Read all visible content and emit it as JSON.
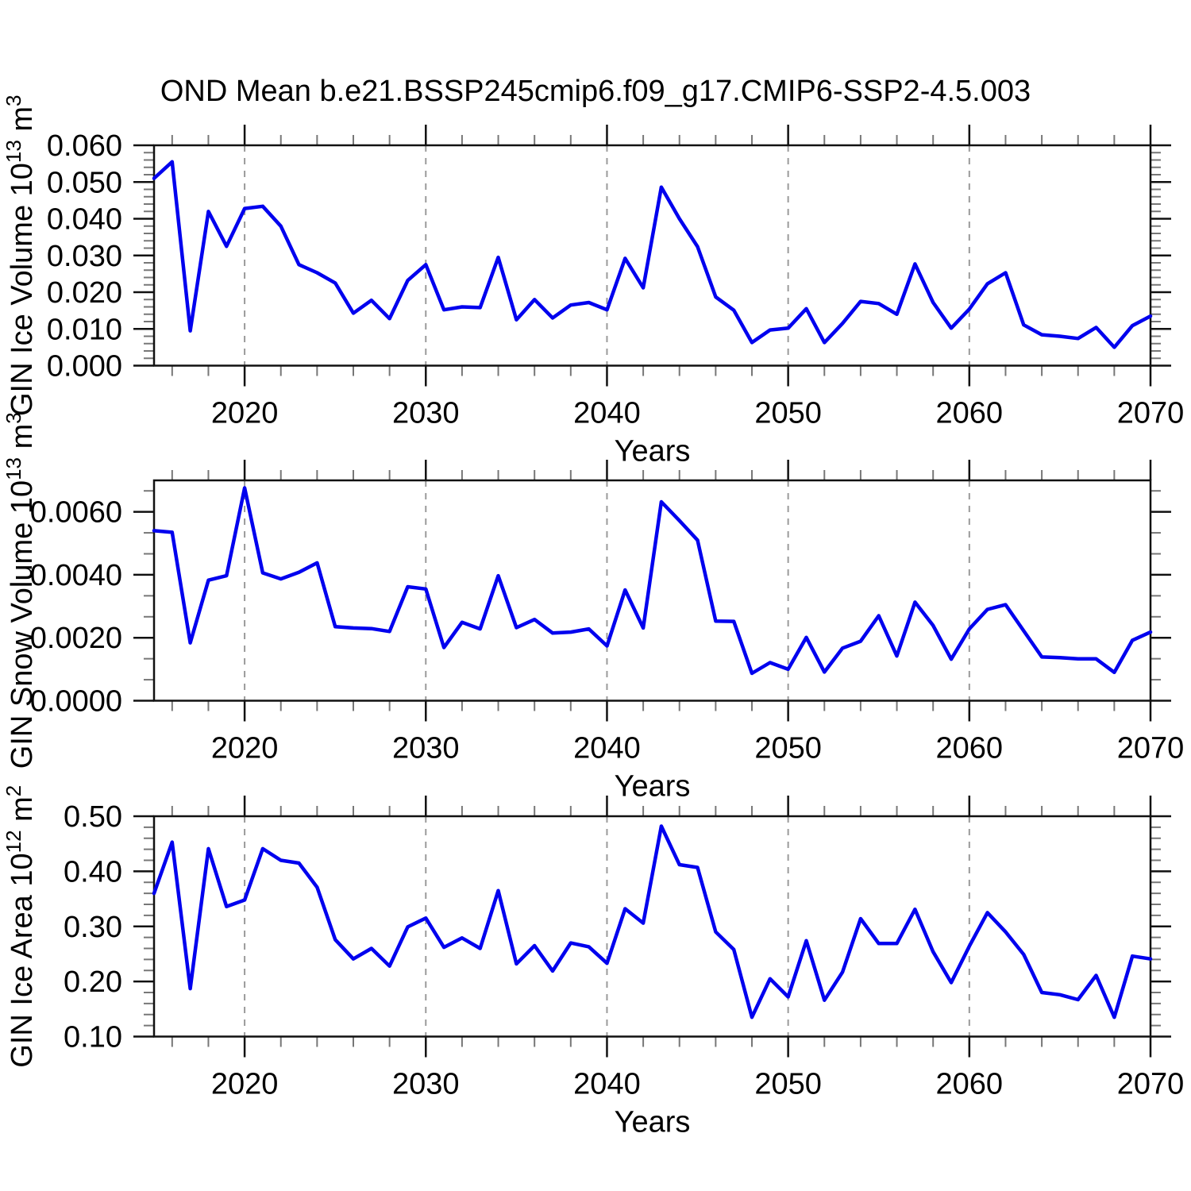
{
  "figure": {
    "title": "OND Mean b.e21.BSSP245cmip6.f09_g17.CMIP6-SSP2-4.5.003",
    "xlabel": "Years",
    "line_color": "#0000EE",
    "grid_color": "#9a9a9a",
    "axis_color": "#111111",
    "minor_tick_color": "#777777",
    "x_range": [
      2015,
      2070
    ],
    "x_major_ticks": [
      2020,
      2030,
      2040,
      2050,
      2060,
      2070
    ],
    "x_minor_step": 2,
    "grid_years": [
      2020,
      2030,
      2040,
      2050,
      2060
    ],
    "years": [
      2015,
      2016,
      2017,
      2018,
      2019,
      2020,
      2021,
      2022,
      2023,
      2024,
      2025,
      2026,
      2027,
      2028,
      2029,
      2030,
      2031,
      2032,
      2033,
      2034,
      2035,
      2036,
      2037,
      2038,
      2039,
      2040,
      2041,
      2042,
      2043,
      2044,
      2045,
      2046,
      2047,
      2048,
      2049,
      2050,
      2051,
      2052,
      2053,
      2054,
      2055,
      2056,
      2057,
      2058,
      2059,
      2060,
      2061,
      2062,
      2063,
      2064,
      2065,
      2066,
      2067,
      2068,
      2069,
      2070
    ]
  },
  "chart_data": [
    {
      "type": "line",
      "id": "gin-ice-volume",
      "ylabel": "GIN Ice Volume 10^{13} m^{3}",
      "xlabel": "Years",
      "ylim": [
        0,
        0.06
      ],
      "ytick_step": 0.01,
      "ytick_decimals": 3,
      "y_minor_divisions": 5,
      "grid": "vertical-dashed",
      "legend": "none",
      "values": [
        0.051,
        0.0555,
        0.0095,
        0.042,
        0.0325,
        0.0428,
        0.0434,
        0.038,
        0.0275,
        0.0253,
        0.0225,
        0.0143,
        0.0178,
        0.0128,
        0.0232,
        0.0275,
        0.0152,
        0.016,
        0.0158,
        0.0295,
        0.0125,
        0.018,
        0.013,
        0.0165,
        0.0172,
        0.0152,
        0.0292,
        0.0212,
        0.0486,
        0.04,
        0.0324,
        0.0187,
        0.0151,
        0.0063,
        0.0097,
        0.0102,
        0.0155,
        0.0063,
        0.0115,
        0.0175,
        0.0169,
        0.014,
        0.0277,
        0.0172,
        0.0102,
        0.0154,
        0.0223,
        0.0253,
        0.0111,
        0.0084,
        0.008,
        0.0074,
        0.0104,
        0.005,
        0.0109,
        0.0135
      ]
    },
    {
      "type": "line",
      "id": "gin-snow-volume",
      "ylabel": "GIN Snow Volume 10^{13} m^{3}",
      "xlabel": "Years",
      "ylim": [
        0,
        0.007
      ],
      "ytick_step": 0.002,
      "ytick_decimals": 4,
      "y_minor_divisions": 3,
      "grid": "vertical-dashed",
      "legend": "none",
      "values": [
        0.0054,
        0.00535,
        0.00184,
        0.00383,
        0.00397,
        0.00676,
        0.00406,
        0.00387,
        0.00408,
        0.00438,
        0.00235,
        0.00231,
        0.00229,
        0.0022,
        0.00362,
        0.00355,
        0.00169,
        0.00249,
        0.00228,
        0.00397,
        0.00232,
        0.00258,
        0.00215,
        0.00218,
        0.00228,
        0.00174,
        0.00352,
        0.00231,
        0.00632,
        0.00572,
        0.0051,
        0.00253,
        0.00252,
        0.00087,
        0.00121,
        0.001,
        0.00201,
        0.00091,
        0.00167,
        0.00189,
        0.0027,
        0.00142,
        0.00313,
        0.00239,
        0.00132,
        0.00228,
        0.0029,
        0.00305,
        0.00222,
        0.00139,
        0.00137,
        0.00133,
        0.00133,
        0.0009,
        0.00192,
        0.00218
      ]
    },
    {
      "type": "line",
      "id": "gin-ice-area",
      "ylabel": "GIN Ice Area 10^{12} m^{2}",
      "xlabel": "Years",
      "ylim": [
        0.1,
        0.5
      ],
      "ytick_step": 0.1,
      "ytick_decimals": 2,
      "y_minor_divisions": 5,
      "grid": "vertical-dashed",
      "legend": "none",
      "values": [
        0.36,
        0.453,
        0.187,
        0.441,
        0.336,
        0.348,
        0.441,
        0.42,
        0.415,
        0.371,
        0.276,
        0.241,
        0.26,
        0.228,
        0.299,
        0.315,
        0.262,
        0.279,
        0.26,
        0.365,
        0.232,
        0.265,
        0.219,
        0.27,
        0.263,
        0.233,
        0.332,
        0.306,
        0.482,
        0.412,
        0.407,
        0.29,
        0.258,
        0.135,
        0.205,
        0.172,
        0.274,
        0.166,
        0.217,
        0.314,
        0.269,
        0.269,
        0.331,
        0.254,
        0.198,
        0.264,
        0.325,
        0.29,
        0.249,
        0.18,
        0.176,
        0.167,
        0.211,
        0.135,
        0.246,
        0.241
      ]
    }
  ]
}
